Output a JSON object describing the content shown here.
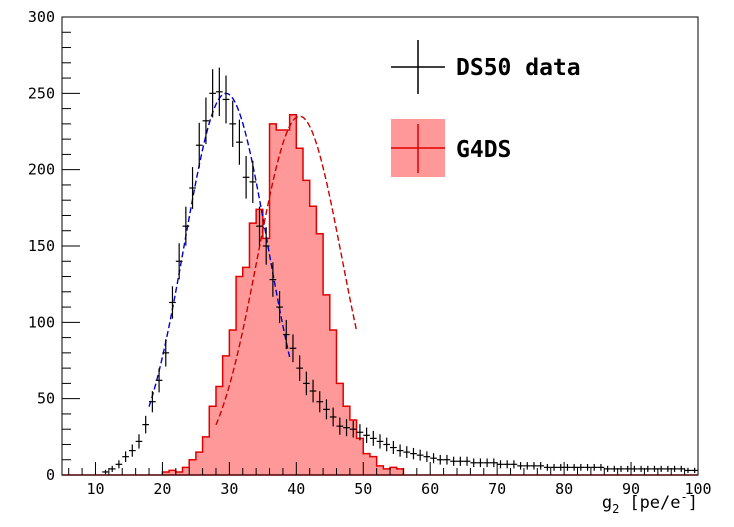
{
  "chart_data": {
    "type": "histogram",
    "xlim": [
      5,
      100
    ],
    "ylim": [
      0,
      300
    ],
    "x_ticks": [
      10,
      20,
      30,
      40,
      50,
      60,
      70,
      80,
      90,
      100
    ],
    "y_ticks": [
      0,
      50,
      100,
      150,
      200,
      250,
      300
    ],
    "xlabel_main": "g",
    "xlabel_sub": "2",
    "xlabel_unit": "[pe/e",
    "xlabel_sup": "-",
    "xlabel_close": "]",
    "grid": false,
    "legend_position": "top-right",
    "legend": [
      {
        "name": "DS50 data",
        "style": "points",
        "color": "#000000"
      },
      {
        "name": "G4DS",
        "style": "filled-histogram",
        "color": "#e00000",
        "fill": "#ff9999"
      }
    ],
    "bin_width": 1,
    "series": [
      {
        "name": "DS50 data",
        "x": [
          11.5,
          12.5,
          13.5,
          14.5,
          15.5,
          16.5,
          17.5,
          18.5,
          19.5,
          20.5,
          21.5,
          22.5,
          23.5,
          24.5,
          25.5,
          26.5,
          27.5,
          28.5,
          29.5,
          30.5,
          31.5,
          32.5,
          33.5,
          34.5,
          35.5,
          36.5,
          37.5,
          38.5,
          39.5,
          40.5,
          41.5,
          42.5,
          43.5,
          44.5,
          45.5,
          46.5,
          47.5,
          48.5,
          49.5,
          50.5,
          51.5,
          52.5,
          53.5,
          54.5,
          55.5,
          56.5,
          57.5,
          58.5,
          59.5,
          60.5,
          61.5,
          62.5,
          63.5,
          64.5,
          65.5,
          66.5,
          67.5,
          68.5,
          69.5,
          70.5,
          71.5,
          72.5,
          73.5,
          74.5,
          75.5,
          76.5,
          77.5,
          78.5,
          79.5,
          80.5,
          81.5,
          82.5,
          83.5,
          84.5,
          85.5,
          86.5,
          87.5,
          88.5,
          89.5,
          90.5,
          91.5,
          92.5,
          93.5,
          94.5,
          95.5,
          96.5,
          97.5,
          98.5,
          99.5
        ],
        "y": [
          2,
          4,
          7,
          12,
          16,
          22,
          33,
          48,
          62,
          80,
          113,
          140,
          163,
          188,
          216,
          232,
          250,
          251,
          246,
          230,
          218,
          195,
          192,
          163,
          150,
          128,
          110,
          92,
          83,
          70,
          60,
          55,
          48,
          43,
          38,
          32,
          31,
          30,
          28,
          26,
          24,
          22,
          20,
          18,
          16,
          15,
          14,
          13,
          12,
          11,
          10,
          10,
          9,
          9,
          9,
          8,
          8,
          8,
          8,
          7,
          7,
          7,
          6,
          6,
          6,
          6,
          5,
          5,
          5,
          5,
          5,
          5,
          5,
          5,
          5,
          4,
          4,
          4,
          4,
          4,
          4,
          4,
          4,
          4,
          4,
          4,
          4,
          3,
          3
        ]
      },
      {
        "name": "G4DS",
        "bin_edges_start": 5,
        "counts": [
          0,
          0,
          0,
          0,
          0,
          0,
          0,
          0,
          0,
          0,
          0,
          0,
          0,
          0,
          0,
          2,
          3,
          2,
          5,
          10,
          15,
          25,
          45,
          58,
          78,
          95,
          130,
          136,
          165,
          174,
          155,
          230,
          226,
          226,
          236,
          214,
          193,
          176,
          158,
          118,
          95,
          60,
          45,
          36,
          24,
          14,
          12,
          6,
          4,
          5,
          4,
          0,
          0,
          0,
          0,
          0,
          0,
          0,
          0,
          0,
          0,
          0,
          0,
          0,
          0,
          0,
          0,
          0,
          0,
          0,
          0,
          0,
          0,
          0,
          0,
          0,
          0,
          0,
          0,
          0,
          0,
          0,
          0,
          0,
          0,
          0,
          0,
          0,
          0,
          0,
          0,
          0,
          0,
          0,
          0
        ]
      }
    ],
    "fits": [
      {
        "name": "DS50 gaussian fit",
        "color": "#0000cc",
        "style": "dashed",
        "mean": 29.5,
        "sigma": 6.2,
        "amplitude": 250,
        "range": [
          18,
          39
        ]
      },
      {
        "name": "G4DS gaussian fit",
        "color": "#cc0000",
        "style": "dashed",
        "mean": 40.5,
        "sigma": 6.3,
        "amplitude": 235,
        "range": [
          28,
          49
        ]
      }
    ]
  }
}
